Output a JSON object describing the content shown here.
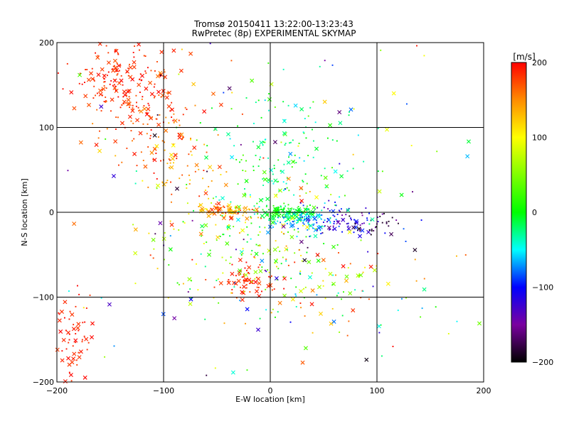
{
  "chart_data": {
    "type": "scatter",
    "title_line1": "Tromsø 20150411 13:22:00-13:23:43",
    "title_line2": "RwPretec (8p) EXPERIMENTAL SKYMAP",
    "xlabel": "E-W location [km]",
    "ylabel": "N-S location [km]",
    "xlim": [
      -200,
      200
    ],
    "ylim": [
      -200,
      200
    ],
    "xticks": [
      -200,
      -100,
      0,
      100,
      200
    ],
    "yticks": [
      -200,
      -100,
      0,
      100,
      200
    ],
    "grid": true,
    "colorbar": {
      "label": "[m/s]",
      "min": -200,
      "max": 200,
      "ticks": [
        200,
        100,
        0,
        -100,
        -200
      ],
      "colormap": "black-purple-blue-cyan-green-yellow-red"
    },
    "markers": [
      "dot",
      "cross"
    ],
    "point_clusters": [
      {
        "cx": -140,
        "cy": 160,
        "sx": 20,
        "sy": 22,
        "n": 150,
        "vmin": 170,
        "vmax": 200,
        "xfrac": 0.3
      },
      {
        "cx": -115,
        "cy": 105,
        "sx": 22,
        "sy": 28,
        "n": 120,
        "vmin": 150,
        "vmax": 200,
        "xfrac": 0.2
      },
      {
        "cx": -85,
        "cy": 55,
        "sx": 18,
        "sy": 18,
        "n": 60,
        "vmin": 100,
        "vmax": 200,
        "xfrac": 0.2
      },
      {
        "cx": -185,
        "cy": -150,
        "sx": 10,
        "sy": 30,
        "n": 70,
        "vmin": 180,
        "vmax": 200,
        "xfrac": 0.4
      },
      {
        "cx": -40,
        "cy": 2,
        "sx": 16,
        "sy": 5,
        "n": 90,
        "vmin": 110,
        "vmax": 190,
        "xfrac": 0.3
      },
      {
        "cx": -20,
        "cy": -80,
        "sx": 15,
        "sy": 10,
        "n": 70,
        "vmin": 170,
        "vmax": 200,
        "xfrac": 0.5
      },
      {
        "cx": 15,
        "cy": 0,
        "sx": 12,
        "sy": 4,
        "n": 120,
        "vmin": -20,
        "vmax": 20,
        "xfrac": 0.3
      },
      {
        "cx": 30,
        "cy": -10,
        "sx": 15,
        "sy": 8,
        "n": 100,
        "vmin": -90,
        "vmax": -30,
        "xfrac": 0.2
      },
      {
        "cx": 70,
        "cy": -10,
        "sx": 20,
        "sy": 10,
        "n": 80,
        "vmin": -150,
        "vmax": -90,
        "xfrac": 0.1
      },
      {
        "cx": 100,
        "cy": -15,
        "sx": 10,
        "sy": 6,
        "n": 20,
        "vmin": -200,
        "vmax": -170,
        "xfrac": 0.2
      },
      {
        "cx": 15,
        "cy": 60,
        "sx": 35,
        "sy": 45,
        "n": 160,
        "vmin": -60,
        "vmax": 40,
        "xfrac": 0.2
      },
      {
        "cx": -20,
        "cy": -30,
        "sx": 40,
        "sy": 30,
        "n": 120,
        "vmin": -30,
        "vmax": 120,
        "xfrac": 0.2
      },
      {
        "cx": 30,
        "cy": -90,
        "sx": 50,
        "sy": 35,
        "n": 100,
        "vmin": -80,
        "vmax": 200,
        "xfrac": 0.3
      },
      {
        "cx": 0,
        "cy": 0,
        "sx": 110,
        "sy": 110,
        "n": 240,
        "vmin": -200,
        "vmax": 200,
        "xfrac": 0.35
      }
    ]
  }
}
